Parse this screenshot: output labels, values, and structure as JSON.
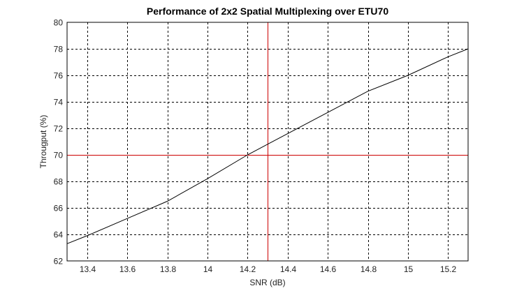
{
  "chart_data": {
    "type": "line",
    "title": "Performance of 2x2 Spatial Multiplexing over ETU70",
    "xlabel": "SNR (dB)",
    "ylabel": "Througput (%)",
    "xlim": [
      13.3,
      15.3
    ],
    "ylim": [
      62,
      80
    ],
    "grid": true,
    "x_ticks": [
      "13.4",
      "13.6",
      "13.8",
      "14",
      "14.2",
      "14.4",
      "14.6",
      "14.8",
      "15",
      "15.2"
    ],
    "x_tick_values": [
      13.4,
      13.6,
      13.8,
      14.0,
      14.2,
      14.4,
      14.6,
      14.8,
      15.0,
      15.2
    ],
    "y_ticks": [
      "62",
      "64",
      "66",
      "68",
      "70",
      "72",
      "74",
      "76",
      "78",
      "80"
    ],
    "y_tick_values": [
      62,
      64,
      66,
      68,
      70,
      72,
      74,
      76,
      78,
      80
    ],
    "series": [
      {
        "name": "Throughput",
        "color": "#000000",
        "x": [
          13.3,
          13.4,
          13.6,
          13.8,
          14.0,
          14.2,
          14.4,
          14.6,
          14.8,
          15.0,
          15.2,
          15.3
        ],
        "y": [
          63.3,
          63.9,
          65.2,
          66.5,
          68.2,
          70.0,
          71.6,
          73.2,
          74.8,
          76.0,
          77.4,
          78.0
        ]
      }
    ],
    "reference_lines": [
      {
        "orientation": "horizontal",
        "value": 70,
        "color": "#cc0000"
      },
      {
        "orientation": "vertical",
        "value": 14.3,
        "color": "#cc0000"
      }
    ]
  },
  "colors": {
    "axis": "#000000",
    "grid": "#000000",
    "reference": "#cc0000",
    "line": "#000000"
  }
}
